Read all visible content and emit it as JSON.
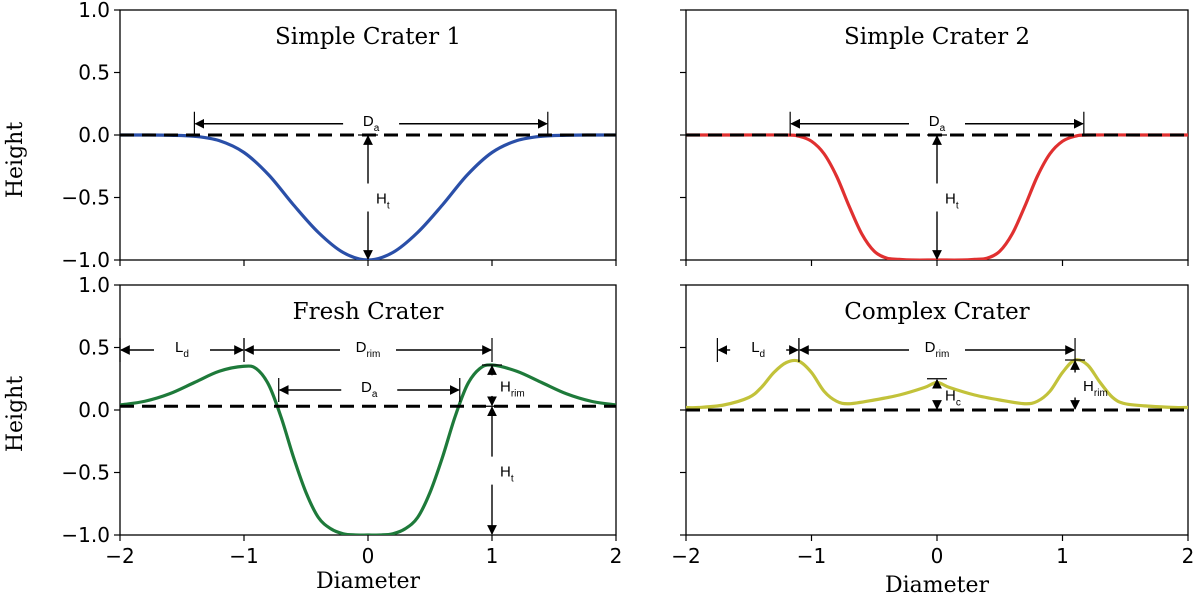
{
  "figure": {
    "xlabel": "Diameter",
    "ylabel": "Height"
  },
  "chart_data": [
    {
      "type": "line",
      "title": "Simple Crater 1",
      "xlabel": "",
      "ylabel": "Height",
      "xlim": [
        -2,
        2
      ],
      "ylim": [
        -1.0,
        1.0
      ],
      "xticks": [],
      "yticks": [
        "−1.0",
        "−0.5",
        "0.0",
        "0.5",
        "1.0"
      ],
      "series": [
        {
          "color": "#2a4fa8",
          "x": [
            -2.0,
            -1.8,
            -1.6,
            -1.4,
            -1.2,
            -1.0,
            -0.8,
            -0.6,
            -0.4,
            -0.2,
            0.0,
            0.2,
            0.4,
            0.6,
            0.8,
            1.0,
            1.2,
            1.4,
            1.6,
            1.8,
            2.0
          ],
          "y": [
            0.0,
            0.0,
            -0.002,
            -0.01,
            -0.045,
            -0.14,
            -0.32,
            -0.56,
            -0.78,
            -0.94,
            -1.0,
            -0.94,
            -0.78,
            -0.56,
            -0.32,
            -0.14,
            -0.045,
            -0.01,
            -0.002,
            0.0,
            0.0
          ]
        }
      ],
      "reference_lines": [
        {
          "y": 0.0,
          "style": "dashed",
          "color": "#000000"
        }
      ],
      "annotations": [
        {
          "label": "D",
          "sub": "a",
          "type": "horizontal-span",
          "x1": -1.4,
          "x2": 1.45,
          "y": 0.09
        },
        {
          "label": "H",
          "sub": "t",
          "type": "vertical-span",
          "x": 0.0,
          "y1": 0.0,
          "y2": -1.0
        }
      ]
    },
    {
      "type": "line",
      "title": "Simple Crater 2",
      "xlabel": "",
      "ylabel": "",
      "xlim": [
        -2,
        2
      ],
      "ylim": [
        -1.0,
        1.0
      ],
      "xticks": [],
      "yticks": [],
      "series": [
        {
          "color": "#e03030",
          "x": [
            -2.0,
            -1.6,
            -1.2,
            -1.1,
            -1.0,
            -0.9,
            -0.8,
            -0.7,
            -0.6,
            -0.5,
            -0.4,
            -0.3,
            -0.2,
            0.0,
            0.2,
            0.3,
            0.4,
            0.5,
            0.6,
            0.7,
            0.8,
            0.9,
            1.0,
            1.1,
            1.2,
            1.6,
            2.0
          ],
          "y": [
            0.0,
            0.0,
            0.0,
            -0.01,
            -0.05,
            -0.15,
            -0.33,
            -0.57,
            -0.79,
            -0.93,
            -0.985,
            -0.995,
            -1.0,
            -1.0,
            -1.0,
            -0.995,
            -0.985,
            -0.93,
            -0.79,
            -0.57,
            -0.33,
            -0.15,
            -0.05,
            -0.01,
            0.0,
            0.0,
            0.0
          ]
        }
      ],
      "reference_lines": [
        {
          "y": 0.0,
          "style": "dashed",
          "color": "#000000"
        }
      ],
      "annotations": [
        {
          "label": "D",
          "sub": "a",
          "type": "horizontal-span",
          "x1": -1.17,
          "x2": 1.17,
          "y": 0.09
        },
        {
          "label": "H",
          "sub": "t",
          "type": "vertical-span",
          "x": 0.0,
          "y1": 0.0,
          "y2": -1.0
        }
      ]
    },
    {
      "type": "line",
      "title": "Fresh Crater",
      "xlabel": "Diameter",
      "ylabel": "Height",
      "xlim": [
        -2,
        2
      ],
      "ylim": [
        -1.0,
        1.0
      ],
      "xticks": [
        "−2",
        "−1",
        "0",
        "1",
        "2"
      ],
      "yticks": [
        "−1.0",
        "−0.5",
        "0.0",
        "0.5",
        "1.0"
      ],
      "series": [
        {
          "color": "#1e7a3a",
          "x": [
            -2.0,
            -1.8,
            -1.6,
            -1.4,
            -1.2,
            -1.0,
            -0.9,
            -0.8,
            -0.7,
            -0.6,
            -0.5,
            -0.4,
            -0.3,
            -0.2,
            -0.1,
            0.0,
            0.1,
            0.2,
            0.3,
            0.4,
            0.5,
            0.6,
            0.7,
            0.8,
            0.9,
            1.0,
            1.2,
            1.4,
            1.6,
            1.8,
            2.0
          ],
          "y": [
            0.04,
            0.07,
            0.13,
            0.22,
            0.31,
            0.35,
            0.33,
            0.2,
            -0.06,
            -0.38,
            -0.66,
            -0.86,
            -0.95,
            -0.99,
            -1.0,
            -1.0,
            -1.0,
            -0.99,
            -0.95,
            -0.86,
            -0.66,
            -0.38,
            -0.06,
            0.2,
            0.33,
            0.36,
            0.31,
            0.22,
            0.13,
            0.07,
            0.04
          ]
        }
      ],
      "reference_lines": [
        {
          "y": 0.03,
          "style": "dashed",
          "color": "#000000"
        }
      ],
      "annotations": [
        {
          "label": "L",
          "sub": "d",
          "type": "horizontal-span",
          "x1": -2.0,
          "x2": -1.0,
          "y": 0.48
        },
        {
          "label": "D",
          "sub": "rim",
          "type": "horizontal-span",
          "x1": -1.0,
          "x2": 1.0,
          "y": 0.48
        },
        {
          "label": "D",
          "sub": "a",
          "type": "horizontal-span",
          "x1": -0.72,
          "x2": 0.74,
          "y": 0.16
        },
        {
          "label": "H",
          "sub": "rim",
          "type": "vertical-span",
          "x": 1.0,
          "y1": 0.36,
          "y2": 0.03
        },
        {
          "label": "H",
          "sub": "t",
          "type": "vertical-span",
          "x": 1.0,
          "y1": 0.03,
          "y2": -1.0
        }
      ]
    },
    {
      "type": "line",
      "title": "Complex Crater",
      "xlabel": "Diameter",
      "ylabel": "",
      "xlim": [
        -2,
        2
      ],
      "ylim": [
        -1.0,
        1.0
      ],
      "xticks": [
        "−2",
        "−1",
        "0",
        "1",
        "2"
      ],
      "yticks": [],
      "series": [
        {
          "color": "#c2c23a",
          "x": [
            -2.0,
            -1.9,
            -1.7,
            -1.5,
            -1.4,
            -1.3,
            -1.2,
            -1.1,
            -1.0,
            -0.9,
            -0.8,
            -0.7,
            -0.5,
            -0.3,
            -0.1,
            0.0,
            0.1,
            0.3,
            0.5,
            0.7,
            0.8,
            0.9,
            1.0,
            1.1,
            1.2,
            1.3,
            1.4,
            1.5,
            1.7,
            1.9,
            2.0
          ],
          "y": [
            0.02,
            0.02,
            0.04,
            0.1,
            0.18,
            0.3,
            0.38,
            0.39,
            0.3,
            0.15,
            0.07,
            0.05,
            0.08,
            0.12,
            0.18,
            0.22,
            0.18,
            0.12,
            0.08,
            0.05,
            0.07,
            0.15,
            0.3,
            0.4,
            0.36,
            0.22,
            0.1,
            0.05,
            0.03,
            0.02,
            0.02
          ]
        }
      ],
      "reference_lines": [
        {
          "y": 0.0,
          "style": "dashed",
          "color": "#000000"
        }
      ],
      "annotations": [
        {
          "label": "L",
          "sub": "d",
          "type": "horizontal-span",
          "x1": -1.75,
          "x2": -1.1,
          "y": 0.48
        },
        {
          "label": "D",
          "sub": "rim",
          "type": "horizontal-span",
          "x1": -1.1,
          "x2": 1.1,
          "y": 0.48
        },
        {
          "label": "H",
          "sub": "c",
          "type": "vertical-span",
          "x": 0.0,
          "y1": 0.25,
          "y2": 0.0
        },
        {
          "label": "H",
          "sub": "rim",
          "type": "vertical-span",
          "x": 1.1,
          "y1": 0.4,
          "y2": 0.0
        }
      ]
    }
  ]
}
